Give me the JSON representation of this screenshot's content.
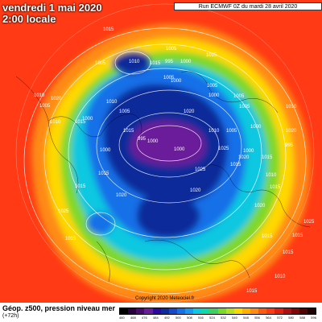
{
  "header": {
    "date": "vendredi 1 mai 2020",
    "time": "2:00 locale",
    "run_info": "Run ECMWF 0Z du mardi 28 avril 2020"
  },
  "footer": {
    "product": "Géop. z500, pression niveau mer",
    "lead": "(+72h)",
    "copyright": "Copyright 2020 Meteociel.fr"
  },
  "colors": {
    "background": "#ff3a14",
    "ring_orange": "#ff8a14",
    "ring_yellow": "#ffd800",
    "ring_green": "#7ed82a",
    "ring_cyan": "#10c8e0",
    "ring_blue": "#1870e8",
    "core_navy": "#102a9a",
    "core_purple": "#6a1e9a"
  },
  "pressure_labels": [
    "1015",
    "1005",
    "1010",
    "1015",
    "1005",
    "1000",
    "1005",
    "995",
    "1000",
    "1015",
    "1010",
    "1005",
    "1010",
    "1020",
    "1000",
    "1015",
    "1010",
    "1005",
    "1000",
    "1015",
    "1020",
    "1005",
    "1000",
    "1005",
    "1005",
    "1010",
    "1025",
    "1015",
    "1020",
    "1025",
    "1020",
    "1000",
    "995",
    "1015",
    "1010",
    "1020",
    "1005",
    "1000",
    "1010",
    "1020",
    "1015",
    "1000",
    "1000",
    "995",
    "1015",
    "1025",
    "1020",
    "1015",
    "1015",
    "1015",
    "1010",
    "1025",
    "1015",
    "1015",
    "1015"
  ],
  "color_scale": [
    "#000000",
    "#2b0040",
    "#4a0a70",
    "#6a1e9a",
    "#2a0aa0",
    "#102a9a",
    "#1848c8",
    "#1870e8",
    "#1898f0",
    "#10c8e0",
    "#10d8a8",
    "#40d060",
    "#7ed82a",
    "#b8e020",
    "#ffd800",
    "#ffb000",
    "#ff8a14",
    "#ff5a14",
    "#ff3a14",
    "#e02010",
    "#b01010",
    "#800808",
    "#500404",
    "#200202"
  ],
  "scale_ticks": [
    "460",
    "468",
    "476",
    "484",
    "492",
    "500",
    "508",
    "516",
    "524",
    "532",
    "540",
    "548",
    "556",
    "564",
    "572",
    "580",
    "588",
    "596"
  ]
}
